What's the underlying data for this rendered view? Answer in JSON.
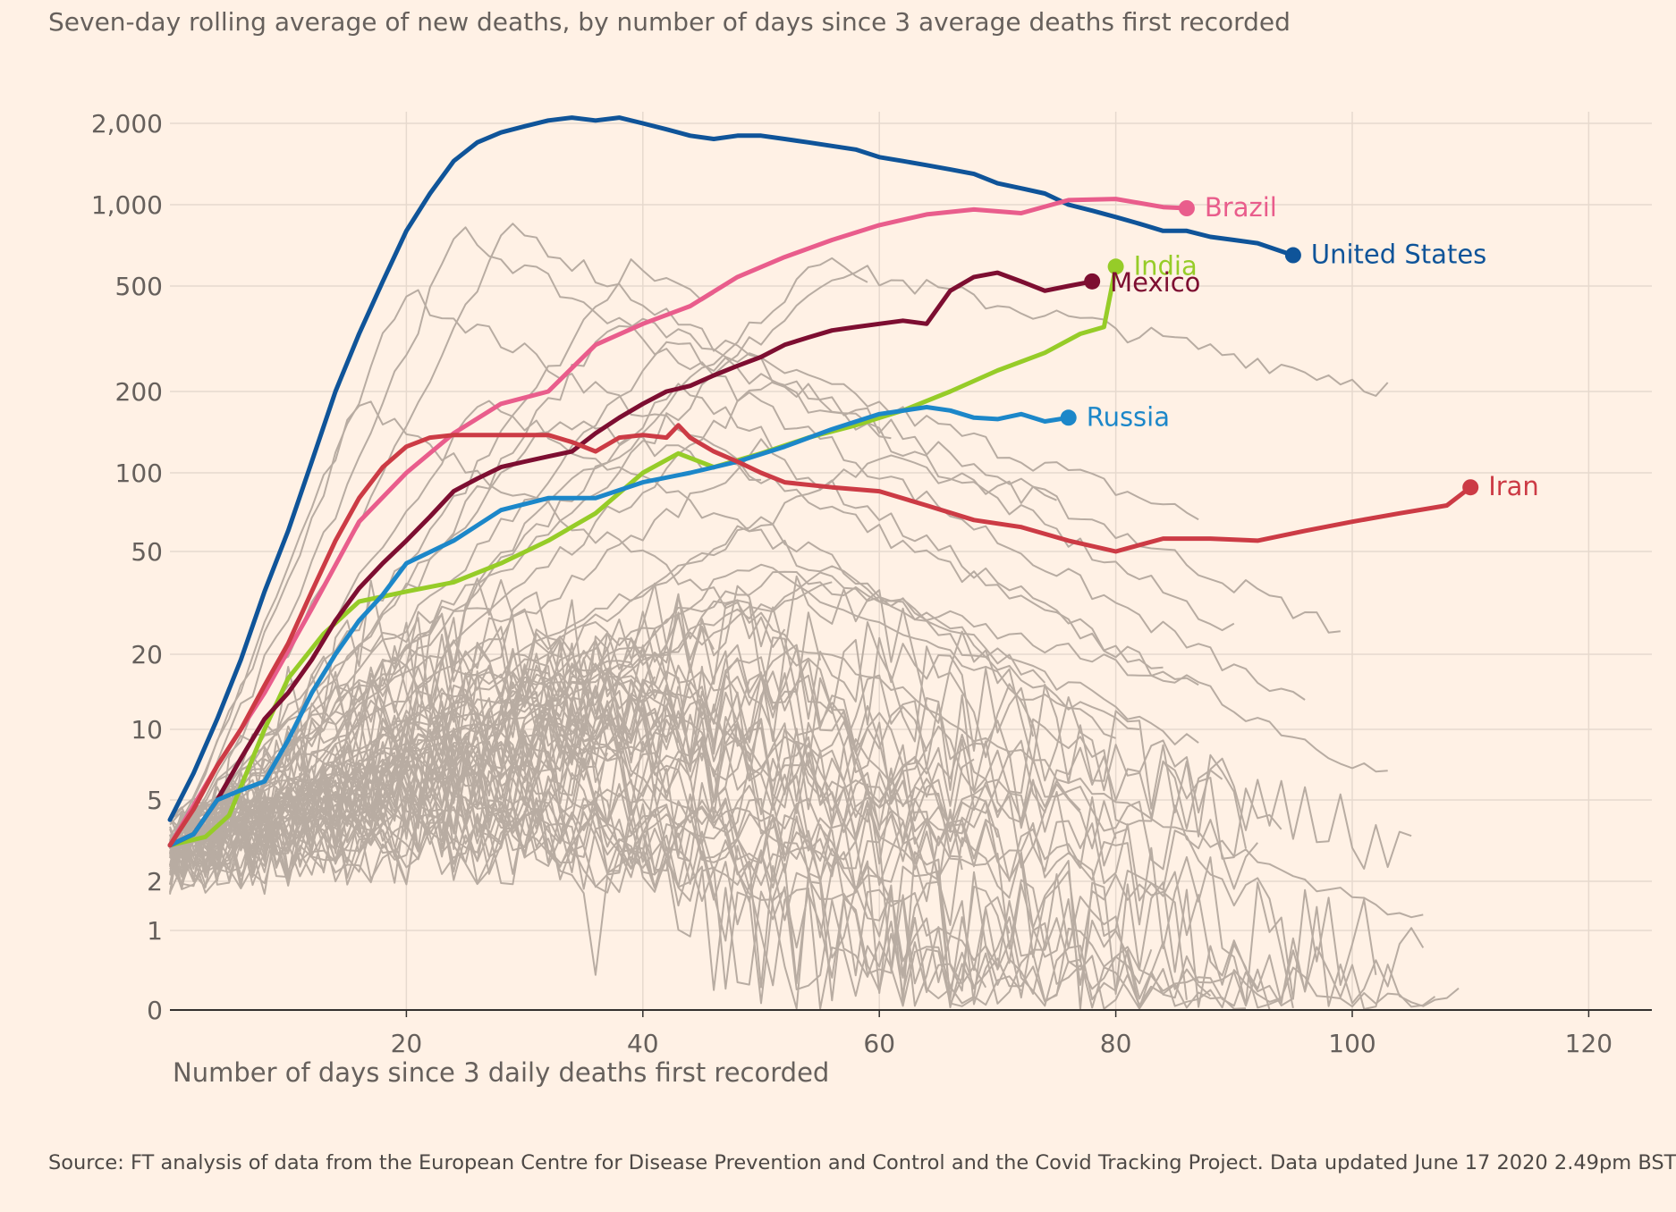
{
  "chart_data": {
    "type": "line",
    "title": "Seven-day rolling average of new deaths, by number of days since 3 average deaths first recorded",
    "xlabel": "Number of days since 3 daily deaths first recorded",
    "ylabel": "",
    "y_scale": "log (0 shown at baseline)",
    "xlim": [
      0,
      124
    ],
    "ylim": [
      0,
      2000
    ],
    "x_ticks": [
      20,
      40,
      60,
      80,
      100,
      120
    ],
    "x_tick_labels": [
      "20",
      "40",
      "60",
      "80",
      "100",
      "120"
    ],
    "y_ticks": [
      0,
      1,
      2,
      5,
      10,
      20,
      50,
      100,
      200,
      500,
      1000,
      2000
    ],
    "y_tick_labels": [
      "0",
      "1",
      "2",
      "5",
      "10",
      "20",
      "50",
      "100",
      "200",
      "500",
      "1,000",
      "2,000"
    ],
    "grid": true,
    "legend": "direct labels at line ends",
    "source": "Source: FT analysis of data from the European Centre for Disease Prevention and Control and the Covid Tracking Project. Data updated June 17 2020 2.49pm BST",
    "series": [
      {
        "name": "United States",
        "color": "#0f5499",
        "x": [
          0,
          2,
          4,
          6,
          8,
          10,
          12,
          14,
          16,
          18,
          20,
          22,
          24,
          26,
          28,
          30,
          32,
          34,
          36,
          38,
          40,
          42,
          44,
          46,
          48,
          50,
          52,
          54,
          56,
          58,
          60,
          62,
          64,
          66,
          68,
          70,
          72,
          74,
          76,
          78,
          80,
          82,
          84,
          86,
          88,
          90,
          92,
          95
        ],
        "y": [
          4,
          6.5,
          11,
          19,
          35,
          60,
          110,
          200,
          330,
          520,
          800,
          1100,
          1450,
          1700,
          1850,
          1950,
          2050,
          2100,
          2050,
          2100,
          2000,
          1900,
          1800,
          1750,
          1800,
          1800,
          1750,
          1700,
          1650,
          1600,
          1500,
          1450,
          1400,
          1350,
          1300,
          1200,
          1150,
          1100,
          1000,
          950,
          900,
          850,
          800,
          800,
          760,
          740,
          720,
          650
        ]
      },
      {
        "name": "Brazil",
        "color": "#e95d8c",
        "x": [
          0,
          4,
          8,
          12,
          16,
          20,
          24,
          28,
          32,
          36,
          40,
          44,
          48,
          52,
          56,
          60,
          64,
          68,
          72,
          76,
          80,
          84,
          86
        ],
        "y": [
          3,
          7,
          14,
          30,
          65,
          100,
          140,
          180,
          200,
          300,
          360,
          420,
          540,
          640,
          740,
          840,
          920,
          960,
          930,
          1040,
          1050,
          980,
          970
        ]
      },
      {
        "name": "India",
        "color": "#96cc28",
        "x": [
          0,
          3,
          5,
          8,
          10,
          13,
          16,
          20,
          24,
          28,
          32,
          36,
          40,
          43,
          46,
          50,
          54,
          58,
          62,
          66,
          70,
          74,
          77,
          79,
          80
        ],
        "y": [
          3,
          3.3,
          4.2,
          10,
          16,
          24,
          32,
          35,
          38,
          45,
          55,
          70,
          100,
          118,
          105,
          118,
          135,
          150,
          170,
          200,
          240,
          280,
          330,
          350,
          590
        ]
      },
      {
        "name": "Mexico",
        "color": "#7d0e31",
        "x": [
          0,
          2,
          4,
          6,
          8,
          10,
          12,
          14,
          16,
          18,
          20,
          22,
          24,
          26,
          28,
          30,
          32,
          34,
          36,
          38,
          40,
          42,
          44,
          46,
          48,
          50,
          52,
          54,
          56,
          58,
          60,
          62,
          64,
          66,
          68,
          70,
          72,
          74,
          76,
          78
        ],
        "y": [
          3,
          3.4,
          5,
          7.5,
          11,
          14,
          19,
          27,
          36,
          45,
          55,
          68,
          85,
          95,
          105,
          110,
          115,
          120,
          140,
          160,
          180,
          200,
          210,
          230,
          250,
          270,
          300,
          320,
          340,
          350,
          360,
          370,
          360,
          480,
          540,
          560,
          520,
          480,
          500,
          520
        ]
      },
      {
        "name": "Russia",
        "color": "#1c87c9",
        "x": [
          0,
          2,
          4,
          6,
          8,
          10,
          12,
          14,
          16,
          18,
          20,
          24,
          28,
          32,
          36,
          40,
          44,
          48,
          52,
          56,
          60,
          64,
          66,
          68,
          70,
          72,
          74,
          76
        ],
        "y": [
          3,
          3.4,
          5,
          5.5,
          6,
          9,
          14,
          20,
          27,
          34,
          45,
          55,
          72,
          80,
          80,
          92,
          100,
          110,
          125,
          145,
          165,
          175,
          170,
          160,
          158,
          165,
          155,
          160
        ]
      },
      {
        "name": "Iran",
        "color": "#cc3b45",
        "x": [
          0,
          2,
          4,
          6,
          8,
          10,
          12,
          14,
          16,
          18,
          20,
          22,
          24,
          28,
          32,
          34,
          36,
          38,
          40,
          42,
          43,
          44,
          46,
          48,
          50,
          52,
          56,
          60,
          64,
          68,
          72,
          76,
          80,
          84,
          88,
          92,
          96,
          100,
          104,
          108,
          110
        ],
        "y": [
          3,
          4.5,
          7,
          10,
          15,
          22,
          35,
          55,
          80,
          105,
          125,
          135,
          138,
          138,
          138,
          130,
          120,
          135,
          138,
          135,
          150,
          135,
          120,
          110,
          100,
          92,
          88,
          85,
          75,
          66,
          62,
          55,
          50,
          56,
          56,
          55,
          60,
          65,
          70,
          75,
          88
        ]
      }
    ]
  },
  "series_labels": {
    "brazil": "Brazil",
    "united_states": "United States",
    "india": "India",
    "mexico": "Mexico",
    "russia": "Russia",
    "iran": "Iran"
  },
  "background_colors": {
    "page": "#fff1e5",
    "grid": "#e6d9ce",
    "other_countries": "#b8aca2"
  }
}
